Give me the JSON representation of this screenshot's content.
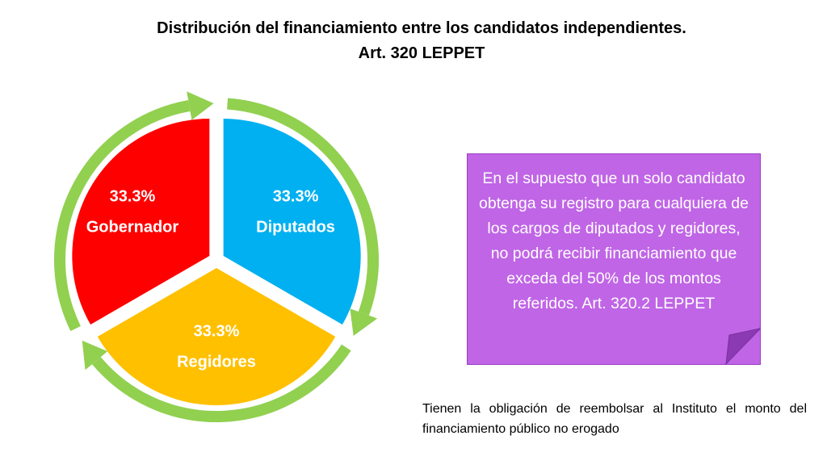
{
  "title": {
    "line1": "Distribución del financiamiento entre los candidatos independientes.",
    "line2": "Art. 320 LEPPET"
  },
  "chart_data": {
    "type": "pie",
    "categories": [
      "Diputados",
      "Regidores",
      "Gobernador"
    ],
    "values": [
      33.3,
      33.3,
      33.3
    ],
    "value_labels": [
      "33.3%",
      "33.3%",
      "33.3%"
    ],
    "colors": [
      "#00b0f0",
      "#ffc000",
      "#ff0000"
    ],
    "arrow_color": "#92d050",
    "exploded": true,
    "legend": "none"
  },
  "note": {
    "text": "En el supuesto que un solo candidato obtenga su registro para cualquiera de los cargos de diputados y regidores, no podrá recibir financiamiento que exceda del 50% de los montos referidos. Art. 320.2 LEPPET",
    "fill": "#c065e6"
  },
  "footnote": {
    "text": "Tienen la obligación de reembolsar al Instituto el monto del financiamiento público no erogado"
  }
}
